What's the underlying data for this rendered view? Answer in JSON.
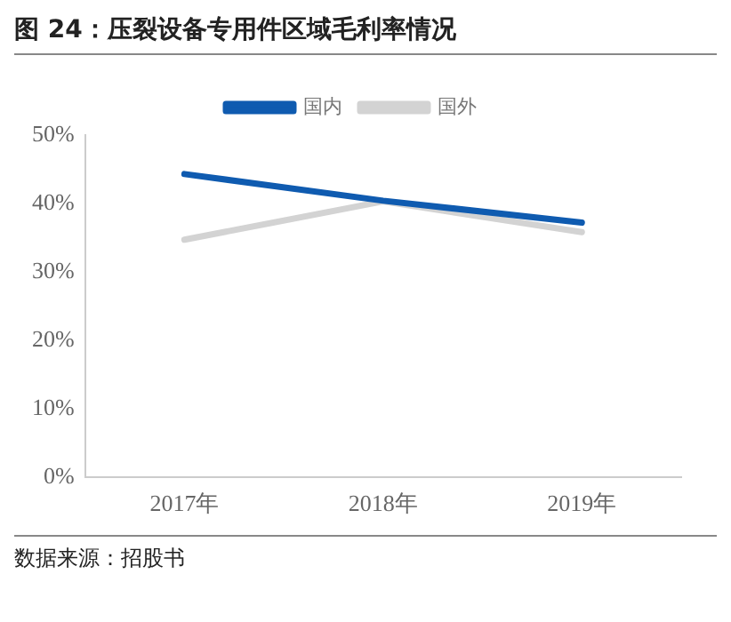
{
  "chart_data": {
    "type": "line",
    "title": "图 24：压裂设备专用件区域毛利率情况",
    "annotations": [
      "数据来源：招股书"
    ],
    "categories": [
      "2017年",
      "2018年",
      "2019年"
    ],
    "series": [
      {
        "name": "国内",
        "color": "#0f5bb0",
        "values": [
          44.3,
          40.4,
          37.2
        ]
      },
      {
        "name": "国外",
        "color": "#d3d3d3",
        "values": [
          34.7,
          40.3,
          35.8
        ]
      }
    ],
    "ylim": [
      0,
      50
    ],
    "yticks": [
      {
        "value": 0,
        "label": "0%"
      },
      {
        "value": 10,
        "label": "10%"
      },
      {
        "value": 20,
        "label": "20%"
      },
      {
        "value": 30,
        "label": "30%"
      },
      {
        "value": 40,
        "label": "40%"
      },
      {
        "value": 50,
        "label": "50%"
      }
    ],
    "grid": false,
    "legend": "top",
    "marker": "none",
    "line_style": "solid"
  }
}
